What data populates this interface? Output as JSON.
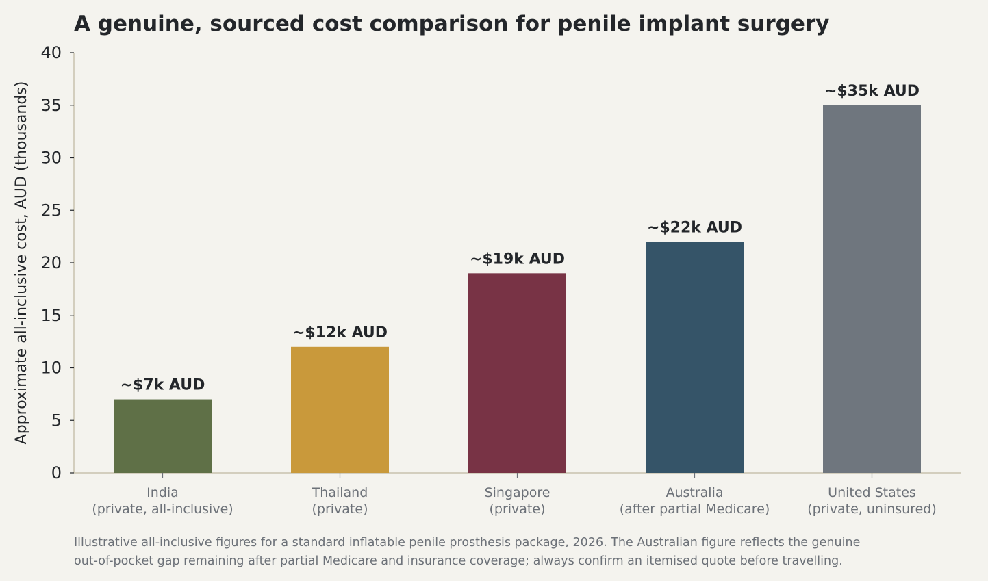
{
  "chart_data": {
    "type": "bar",
    "title": "A genuine, sourced cost comparison for penile implant surgery",
    "ylabel": "Approximate all-inclusive cost, AUD (thousands)",
    "xlabel": "",
    "ylim": [
      0,
      40
    ],
    "yticks": [
      0,
      5,
      10,
      15,
      20,
      25,
      30,
      35,
      40
    ],
    "categories": [
      [
        "India",
        "(private, all-inclusive)"
      ],
      [
        "Thailand",
        "(private)"
      ],
      [
        "Singapore",
        "(private)"
      ],
      [
        "Australia",
        "(after partial Medicare)"
      ],
      [
        "United States",
        "(private, uninsured)"
      ]
    ],
    "values": [
      7,
      12,
      19,
      22,
      35
    ],
    "data_labels": [
      "~$7k AUD",
      "~$12k AUD",
      "~$19k AUD",
      "~$22k AUD",
      "~$35k AUD"
    ],
    "colors": [
      "#5f7047",
      "#c9993b",
      "#783345",
      "#355468",
      "#6f767e"
    ],
    "grid": false,
    "legend": "none"
  },
  "footnote": {
    "line1": "Illustrative all-inclusive figures for a standard inflatable penile prosthesis package, 2026. The Australian figure reflects the genuine",
    "line2": "out-of-pocket gap remaining after partial Medicare and insurance coverage; always confirm an itemised quote before travelling."
  },
  "style": {
    "background": "#f4f3ee",
    "axis_color": "#c8c2ad",
    "text_color": "#23262a",
    "muted_text_color": "#6c7178"
  }
}
